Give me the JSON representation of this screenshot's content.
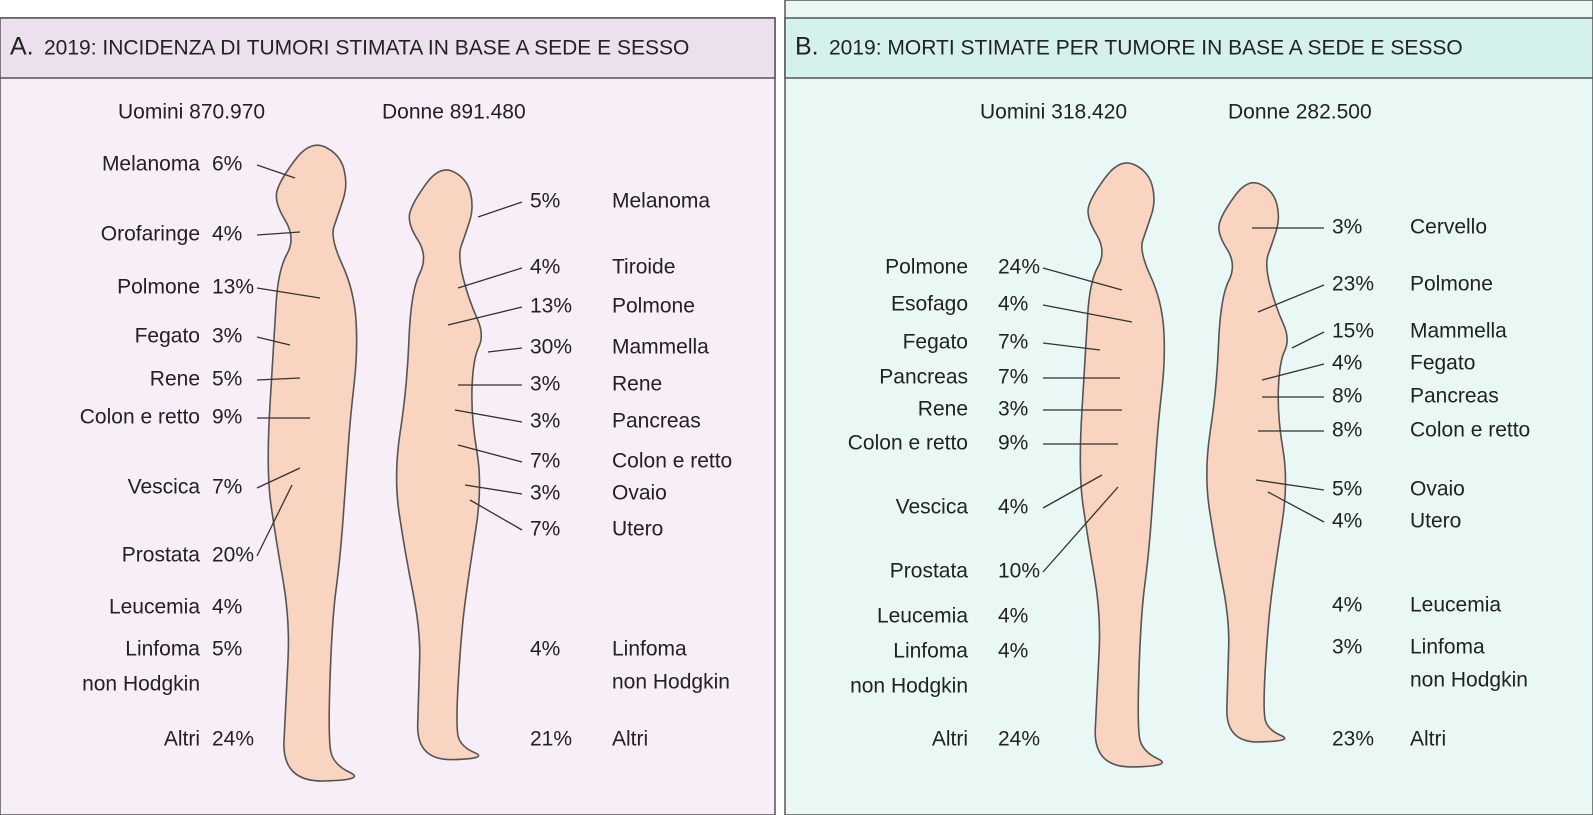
{
  "panels": [
    {
      "letter": "A.",
      "title": "2019: INCIDENZA DI TUMORI STIMATA IN BASE A SEDE E SESSO",
      "men_total": "Uomini 870.970",
      "women_total": "Donne 891.480",
      "men": [
        {
          "name": [
            "Melanoma"
          ],
          "pct": "6%"
        },
        {
          "name": [
            "Orofaringe"
          ],
          "pct": "4%"
        },
        {
          "name": [
            "Polmone"
          ],
          "pct": "13%"
        },
        {
          "name": [
            "Fegato"
          ],
          "pct": "3%"
        },
        {
          "name": [
            "Rene"
          ],
          "pct": "5%"
        },
        {
          "name": [
            "Colon e retto"
          ],
          "pct": "9%"
        },
        {
          "name": [
            "Vescica"
          ],
          "pct": "7%"
        },
        {
          "name": [
            "Prostata"
          ],
          "pct": "20%"
        },
        {
          "name": [
            "Leucemia"
          ],
          "pct": "4%"
        },
        {
          "name": [
            "Linfoma",
            "non Hodgkin"
          ],
          "pct": "5%"
        },
        {
          "name": [
            "Altri"
          ],
          "pct": "24%"
        }
      ],
      "women": [
        {
          "name": [
            "Melanoma"
          ],
          "pct": "5%"
        },
        {
          "name": [
            "Tiroide"
          ],
          "pct": "4%"
        },
        {
          "name": [
            "Polmone"
          ],
          "pct": "13%"
        },
        {
          "name": [
            "Mammella"
          ],
          "pct": "30%"
        },
        {
          "name": [
            "Rene"
          ],
          "pct": "3%"
        },
        {
          "name": [
            "Pancreas"
          ],
          "pct": "3%"
        },
        {
          "name": [
            "Colon e retto"
          ],
          "pct": "7%"
        },
        {
          "name": [
            "Ovaio"
          ],
          "pct": "3%"
        },
        {
          "name": [
            "Utero"
          ],
          "pct": "7%"
        },
        {
          "name": [
            "Linfoma",
            "non Hodgkin"
          ],
          "pct": "4%"
        },
        {
          "name": [
            "Altri"
          ],
          "pct": "21%"
        }
      ]
    },
    {
      "letter": "B.",
      "title": "2019: MORTI STIMATE PER TUMORE IN BASE A SEDE E SESSO",
      "men_total": "Uomini  318.420",
      "women_total": "Donne  282.500",
      "men": [
        {
          "name": [
            "Polmone"
          ],
          "pct": "24%"
        },
        {
          "name": [
            "Esofago"
          ],
          "pct": "4%"
        },
        {
          "name": [
            "Fegato"
          ],
          "pct": "7%"
        },
        {
          "name": [
            "Pancreas"
          ],
          "pct": "7%"
        },
        {
          "name": [
            "Rene"
          ],
          "pct": "3%"
        },
        {
          "name": [
            "Colon e retto"
          ],
          "pct": "9%"
        },
        {
          "name": [
            "Vescica"
          ],
          "pct": "4%"
        },
        {
          "name": [
            "Prostata"
          ],
          "pct": "10%"
        },
        {
          "name": [
            "Leucemia"
          ],
          "pct": "4%"
        },
        {
          "name": [
            "Linfoma",
            "non Hodgkin"
          ],
          "pct": "4%"
        },
        {
          "name": [
            "Altri"
          ],
          "pct": "24%"
        }
      ],
      "women": [
        {
          "name": [
            "Cervello"
          ],
          "pct": "3%"
        },
        {
          "name": [
            "Polmone"
          ],
          "pct": "23%"
        },
        {
          "name": [
            "Mammella"
          ],
          "pct": "15%"
        },
        {
          "name": [
            "Fegato"
          ],
          "pct": "4%"
        },
        {
          "name": [
            "Pancreas"
          ],
          "pct": "8%"
        },
        {
          "name": [
            "Colon e retto"
          ],
          "pct": "8%"
        },
        {
          "name": [
            "Ovaio"
          ],
          "pct": "5%"
        },
        {
          "name": [
            "Utero"
          ],
          "pct": "4%"
        },
        {
          "name": [
            "Leucemia"
          ],
          "pct": "4%"
        },
        {
          "name": [
            "Linfoma",
            "non Hodgkin"
          ],
          "pct": "3%"
        },
        {
          "name": [
            "Altri"
          ],
          "pct": "23%"
        }
      ]
    }
  ]
}
